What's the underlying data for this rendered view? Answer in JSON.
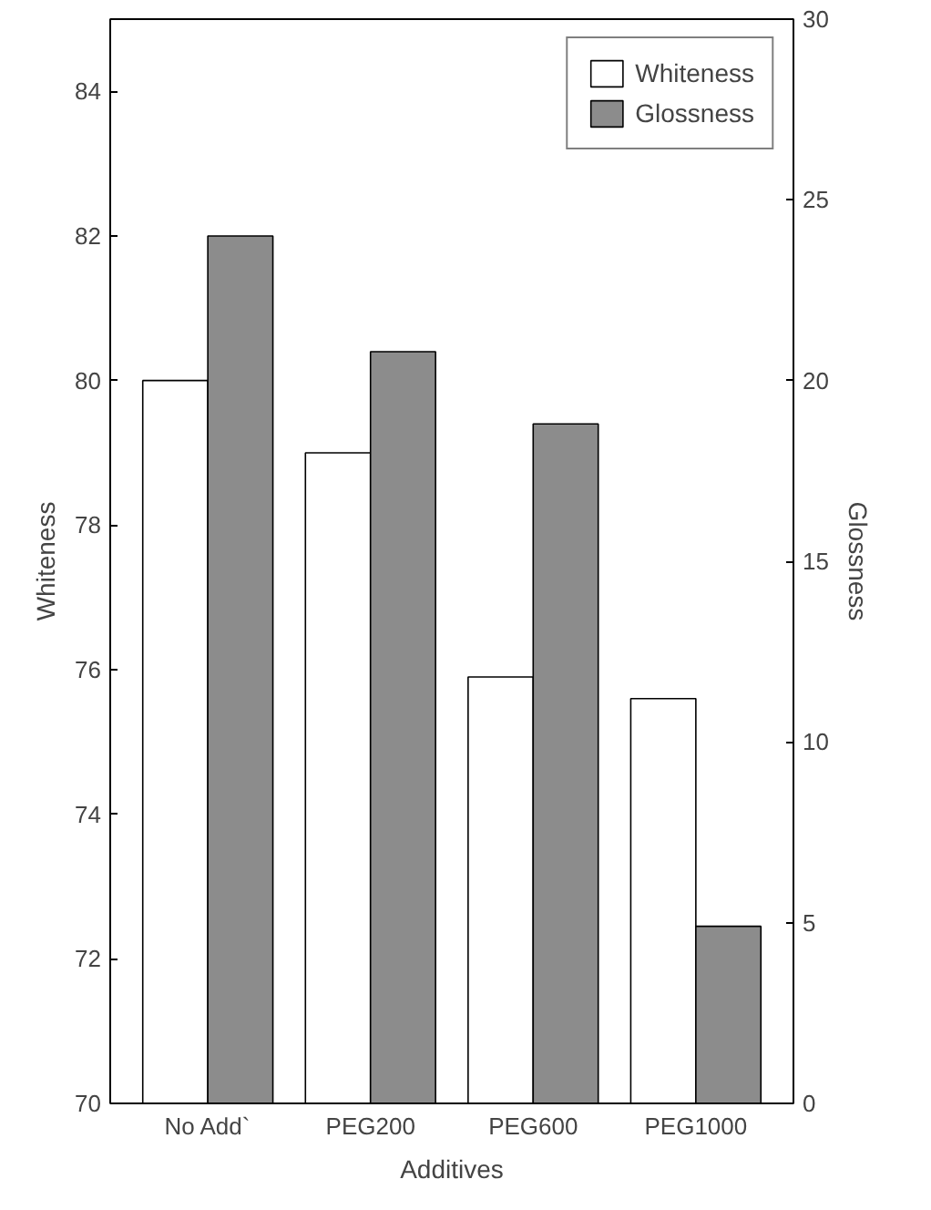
{
  "chart_data": {
    "type": "bar",
    "xlabel": "Additives",
    "ylabel": "Whiteness",
    "y2label": "Glossness",
    "categories": [
      "No Add`",
      "PEG200",
      "PEG600",
      "PEG1000"
    ],
    "series": [
      {
        "name": "Whiteness",
        "color": "#ffffff",
        "values": [
          80,
          79,
          75.9,
          75.6
        ]
      },
      {
        "name": "Glossness",
        "color": "#8c8c8c",
        "axis": "y2",
        "values": [
          24,
          20.8,
          18.8,
          4.9
        ]
      }
    ],
    "ylim": [
      70,
      85
    ],
    "yticks": [
      70,
      72,
      74,
      76,
      78,
      80,
      82,
      84
    ],
    "y2lim": [
      0,
      30
    ],
    "y2ticks": [
      0,
      5,
      10,
      15,
      20,
      25,
      30
    ],
    "legend": "top right",
    "grid": false
  }
}
